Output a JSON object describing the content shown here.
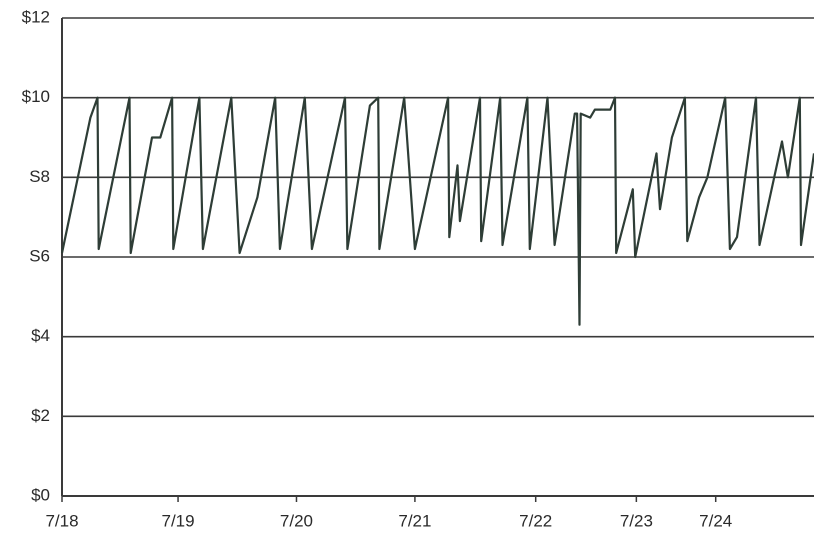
{
  "chart_data": {
    "type": "line",
    "x": [
      0,
      0.24,
      0.3,
      0.31,
      0.57,
      0.58,
      0.76,
      0.83,
      0.93,
      0.94,
      1.16,
      1.19,
      1.43,
      1.5,
      1.65,
      1.8,
      1.84,
      2.05,
      2.11,
      2.39,
      2.41,
      2.6,
      2.67,
      2.68,
      2.89,
      2.98,
      3.26,
      3.27,
      3.34,
      3.36,
      3.53,
      3.54,
      3.7,
      3.72,
      3.93,
      3.95,
      4.1,
      4.16,
      4.33,
      4.35,
      4.37,
      4.38,
      4.46,
      4.5,
      4.63,
      4.67,
      4.68,
      4.82,
      4.84,
      5.02,
      5.05,
      5.15,
      5.26,
      5.28,
      5.38,
      5.45,
      5.6,
      5.64,
      5.7,
      5.86,
      5.89,
      6.08,
      6.13,
      6.23,
      6.24,
      6.35
    ],
    "values": [
      6.1,
      9.5,
      10,
      6.2,
      10,
      6.1,
      9.0,
      9.0,
      10,
      6.2,
      10,
      6.2,
      10,
      6.1,
      7.5,
      10,
      6.2,
      10,
      6.2,
      10,
      6.2,
      9.8,
      10,
      6.2,
      10,
      6.2,
      10,
      6.5,
      8.3,
      6.9,
      10,
      6.4,
      10,
      6.3,
      10,
      6.2,
      10,
      6.3,
      9.6,
      9.6,
      4.3,
      9.6,
      9.5,
      9.7,
      9.7,
      10,
      6.1,
      7.7,
      6.0,
      8.6,
      7.2,
      9.0,
      10,
      6.4,
      7.5,
      8.0,
      10,
      6.2,
      6.5,
      10,
      6.3,
      8.9,
      8.0,
      10,
      6.3,
      8.6
    ],
    "color": "#2e3d36",
    "xlim": [
      0,
      6.35
    ],
    "xticks": [
      {
        "value": 0,
        "label": "7/18"
      },
      {
        "value": 0.98,
        "label": "7/19"
      },
      {
        "value": 1.98,
        "label": "7/20"
      },
      {
        "value": 2.98,
        "label": "7/21"
      },
      {
        "value": 4.0,
        "label": "7/22"
      },
      {
        "value": 4.85,
        "label": "7/23"
      },
      {
        "value": 5.52,
        "label": "7/24"
      }
    ],
    "ylim": [
      0,
      12
    ],
    "yticks": [
      {
        "value": 0,
        "label": "$0"
      },
      {
        "value": 2,
        "label": "$2"
      },
      {
        "value": 4,
        "label": "$4"
      },
      {
        "value": 6,
        "label": "S6"
      },
      {
        "value": 8,
        "label": "S8"
      },
      {
        "value": 10,
        "label": "$10"
      },
      {
        "value": 12,
        "label": "$12"
      }
    ],
    "grid": true
  }
}
